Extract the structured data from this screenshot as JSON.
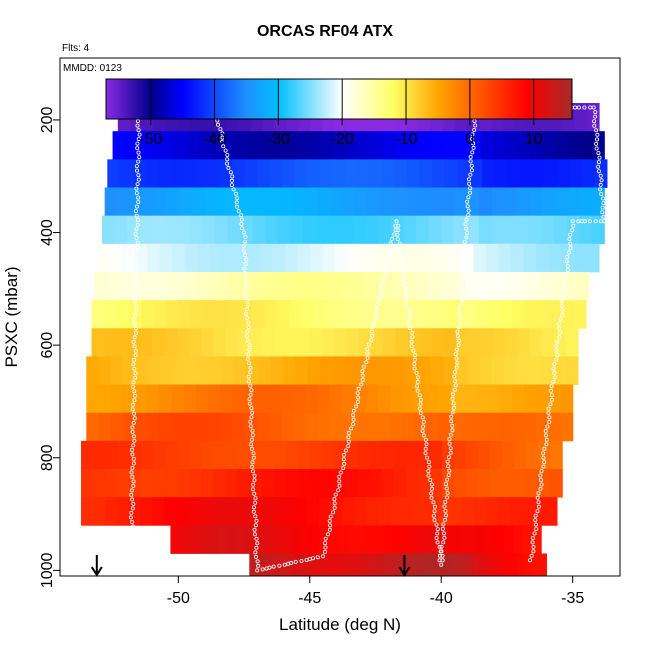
{
  "chart_data": {
    "type": "heatmap",
    "title": "ORCAS RF04 ATX",
    "flights_note": "Flts: 4",
    "date_note": "MMDD: 0123",
    "xlabel": "Latitude (deg N)",
    "ylabel": "PSXC (mbar)",
    "xlim": [
      -54.5,
      -33.2
    ],
    "ylim": [
      1010,
      90
    ],
    "x_ticks": [
      -50,
      -45,
      -40,
      -35
    ],
    "x_tick_labels": [
      "-50",
      "-45",
      "-40",
      "-35"
    ],
    "y_ticks": [
      200,
      400,
      600,
      800,
      1000
    ],
    "y_tick_labels": [
      "200",
      "400",
      "600",
      "800",
      "1000"
    ],
    "colorbar": {
      "range": [
        -57,
        16
      ],
      "ticks": [
        -50,
        -40,
        -30,
        -20,
        -10,
        0,
        10
      ],
      "tick_labels": [
        "-50",
        "-40",
        "-30",
        "-20",
        "-10",
        "0",
        "10"
      ],
      "color_stops": [
        {
          "value": -57,
          "color": "#8a2be2"
        },
        {
          "value": -50,
          "color": "#00008b"
        },
        {
          "value": -45,
          "color": "#0000ff"
        },
        {
          "value": -35,
          "color": "#1e90ff"
        },
        {
          "value": -30,
          "color": "#00bfff"
        },
        {
          "value": -20,
          "color": "#ffffff"
        },
        {
          "value": -12,
          "color": "#ffff66"
        },
        {
          "value": -5,
          "color": "#ffa500"
        },
        {
          "value": 3,
          "color": "#ff4500"
        },
        {
          "value": 9,
          "color": "#ff0000"
        },
        {
          "value": 16,
          "color": "#a52a2a"
        }
      ]
    },
    "pressure_bands": [
      {
        "p_top": 170,
        "p_bot": 220,
        "lat_min": -52.3,
        "lat_max": -34.0,
        "temp": -55
      },
      {
        "p_top": 220,
        "p_bot": 270,
        "lat_min": -52.5,
        "lat_max": -33.8,
        "temp": -47
      },
      {
        "p_top": 270,
        "p_bot": 320,
        "lat_min": -52.7,
        "lat_max": -33.7,
        "temp": -40
      },
      {
        "p_top": 320,
        "p_bot": 370,
        "lat_min": -52.8,
        "lat_max": -33.8,
        "temp": -33
      },
      {
        "p_top": 370,
        "p_bot": 420,
        "lat_min": -52.9,
        "lat_max": -33.8,
        "temp": -26
      },
      {
        "p_top": 420,
        "p_bot": 470,
        "lat_min": -53.1,
        "lat_max": -34.0,
        "temp": -21
      },
      {
        "p_top": 470,
        "p_bot": 520,
        "lat_min": -53.2,
        "lat_max": -34.4,
        "temp": -16
      },
      {
        "p_top": 520,
        "p_bot": 570,
        "lat_min": -53.3,
        "lat_max": -34.5,
        "temp": -12
      },
      {
        "p_top": 570,
        "p_bot": 620,
        "lat_min": -53.3,
        "lat_max": -34.8,
        "temp": -9
      },
      {
        "p_top": 620,
        "p_bot": 670,
        "lat_min": -53.5,
        "lat_max": -34.8,
        "temp": -6
      },
      {
        "p_top": 670,
        "p_bot": 720,
        "lat_min": -53.5,
        "lat_max": -35.0,
        "temp": -3
      },
      {
        "p_top": 720,
        "p_bot": 770,
        "lat_min": -53.5,
        "lat_max": -35.0,
        "temp": 0
      },
      {
        "p_top": 770,
        "p_bot": 820,
        "lat_min": -53.7,
        "lat_max": -35.4,
        "temp": 3
      },
      {
        "p_top": 820,
        "p_bot": 870,
        "lat_min": -53.7,
        "lat_max": -35.4,
        "temp": 5
      },
      {
        "p_top": 870,
        "p_bot": 920,
        "lat_min": -53.7,
        "lat_max": -35.6,
        "temp": 7
      },
      {
        "p_top": 920,
        "p_bot": 970,
        "lat_min": -50.3,
        "lat_max": -36.2,
        "temp": 9
      },
      {
        "p_top": 970,
        "p_bot": 1010,
        "lat_min": -47.3,
        "lat_max": -36.0,
        "temp": 12
      }
    ],
    "flight_track": [
      {
        "lat": -51.8,
        "p": 1010
      },
      {
        "lat": -51.5,
        "p": 178
      },
      {
        "lat": -48.6,
        "p": 178
      },
      {
        "lat": -47.5,
        "p": 400
      },
      {
        "lat": -47.0,
        "p": 1000
      },
      {
        "lat": -44.5,
        "p": 975
      },
      {
        "lat": -41.7,
        "p": 380
      },
      {
        "lat": -40.0,
        "p": 990
      },
      {
        "lat": -38.7,
        "p": 178
      },
      {
        "lat": -34.2,
        "p": 178
      },
      {
        "lat": -33.8,
        "p": 380
      },
      {
        "lat": -35.0,
        "p": 380
      },
      {
        "lat": -36.6,
        "p": 990
      }
    ],
    "arrow_markers": [
      {
        "lat": -53.1,
        "p": 1010
      },
      {
        "lat": -41.4,
        "p": 1010
      }
    ]
  }
}
